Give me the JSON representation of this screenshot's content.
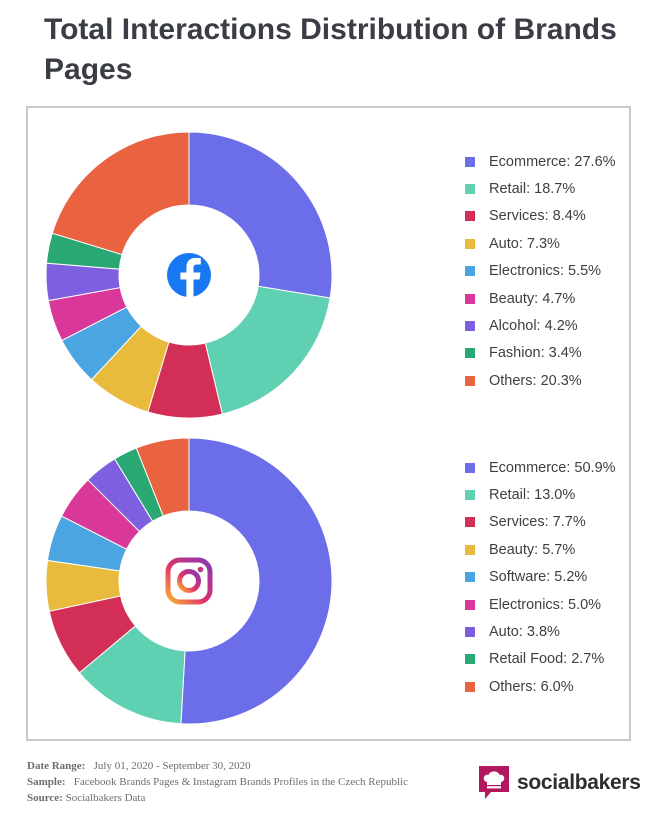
{
  "title": "Total Interactions Distribution of Brands Pages",
  "chart_data": [
    {
      "type": "pie",
      "platform_icon": "facebook-icon",
      "categories": [
        "Ecommerce",
        "Retail",
        "Services",
        "Auto",
        "Electronics",
        "Beauty",
        "Alcohol",
        "Fashion",
        "Others"
      ],
      "values": [
        27.6,
        18.7,
        8.4,
        7.3,
        5.5,
        4.7,
        4.2,
        3.4,
        20.3
      ],
      "labels": [
        "Ecommerce: 27.6%",
        "Retail: 18.7%",
        "Services: 8.4%",
        "Auto: 7.3%",
        "Electronics: 5.5%",
        "Beauty: 4.7%",
        "Alcohol: 4.2%",
        "Fashion: 3.4%",
        "Others: 20.3%"
      ],
      "colors": [
        "#6b6ee8",
        "#5fd1b2",
        "#d32f56",
        "#e8bb3c",
        "#4aa5e0",
        "#d9379a",
        "#7d5fe0",
        "#29a873",
        "#ea6340"
      ],
      "legend": "right"
    },
    {
      "type": "pie",
      "platform_icon": "instagram-icon",
      "categories": [
        "Ecommerce",
        "Retail",
        "Services",
        "Beauty",
        "Software",
        "Electronics",
        "Auto",
        "Retail Food",
        "Others"
      ],
      "values": [
        50.9,
        13.0,
        7.7,
        5.7,
        5.2,
        5.0,
        3.8,
        2.7,
        6.0
      ],
      "labels": [
        "Ecommerce: 50.9%",
        "Retail: 13.0%",
        "Services: 7.7%",
        "Beauty: 5.7%",
        "Software: 5.2%",
        "Electronics: 5.0%",
        "Auto: 3.8%",
        "Retail Food: 2.7%",
        "Others: 6.0%"
      ],
      "colors": [
        "#6b6ee8",
        "#5fd1b2",
        "#d32f56",
        "#e8bb3c",
        "#4aa5e0",
        "#d9379a",
        "#7d5fe0",
        "#29a873",
        "#ea6340"
      ],
      "legend": "right"
    }
  ],
  "footer": {
    "date_label": "Date Range:",
    "date_value": "July 01, 2020 - September 30, 2020",
    "sample_label": "Sample:",
    "sample_value": "Facebook Brands Pages & Instagram Brands Profiles in the Czech Republic",
    "source_label": "Source:",
    "source_value": "Socialbakers Data"
  },
  "brand": {
    "name": "socialbakers",
    "logo_color": "#b3185e"
  }
}
